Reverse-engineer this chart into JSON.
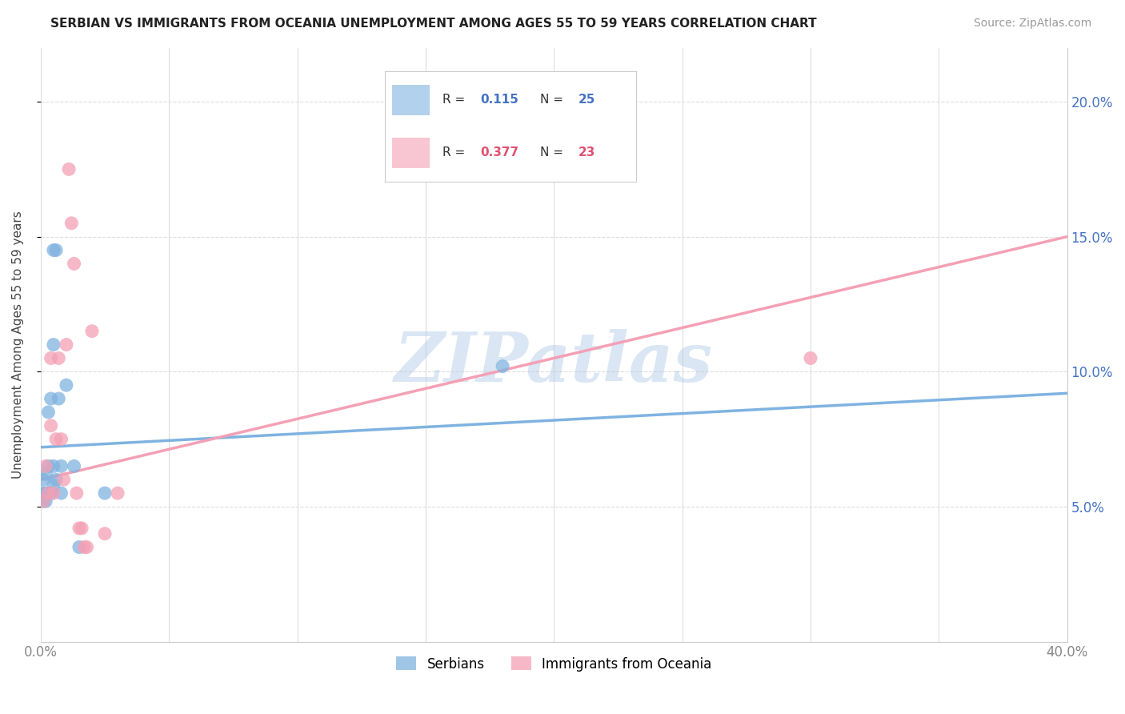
{
  "title": "SERBIAN VS IMMIGRANTS FROM OCEANIA UNEMPLOYMENT AMONG AGES 55 TO 59 YEARS CORRELATION CHART",
  "source": "Source: ZipAtlas.com",
  "ylabel": "Unemployment Among Ages 55 to 59 years",
  "xlim": [
    0,
    0.4
  ],
  "ylim": [
    0,
    0.22
  ],
  "xtick_vals": [
    0.0,
    0.05,
    0.1,
    0.15,
    0.2,
    0.25,
    0.3,
    0.35,
    0.4
  ],
  "xticklabels": [
    "0.0%",
    "",
    "",
    "",
    "",
    "",
    "",
    "",
    "40.0%"
  ],
  "ytick_positions": [
    0.05,
    0.1,
    0.15,
    0.2
  ],
  "ytick_labels": [
    "5.0%",
    "10.0%",
    "15.0%",
    "20.0%"
  ],
  "serbian_color": "#7fb3e0",
  "oceania_color": "#f4a0b5",
  "serbian_R": 0.115,
  "serbian_N": 25,
  "oceania_R": 0.377,
  "oceania_N": 23,
  "serbian_x": [
    0.001,
    0.001,
    0.001,
    0.002,
    0.002,
    0.002,
    0.003,
    0.003,
    0.003,
    0.004,
    0.004,
    0.005,
    0.005,
    0.005,
    0.005,
    0.006,
    0.006,
    0.007,
    0.008,
    0.008,
    0.01,
    0.013,
    0.015,
    0.025,
    0.18
  ],
  "serbian_y": [
    0.052,
    0.055,
    0.06,
    0.052,
    0.055,
    0.062,
    0.055,
    0.065,
    0.085,
    0.055,
    0.09,
    0.058,
    0.065,
    0.11,
    0.145,
    0.145,
    0.06,
    0.09,
    0.055,
    0.065,
    0.095,
    0.065,
    0.035,
    0.055,
    0.102
  ],
  "oceania_x": [
    0.001,
    0.002,
    0.003,
    0.004,
    0.004,
    0.005,
    0.006,
    0.007,
    0.008,
    0.009,
    0.01,
    0.011,
    0.012,
    0.013,
    0.014,
    0.015,
    0.016,
    0.017,
    0.018,
    0.02,
    0.025,
    0.03,
    0.3
  ],
  "oceania_y": [
    0.052,
    0.065,
    0.055,
    0.08,
    0.105,
    0.055,
    0.075,
    0.105,
    0.075,
    0.06,
    0.11,
    0.175,
    0.155,
    0.14,
    0.055,
    0.042,
    0.042,
    0.035,
    0.035,
    0.115,
    0.04,
    0.055,
    0.105
  ],
  "serbian_line_x": [
    0.0,
    0.4
  ],
  "serbian_line_y": [
    0.072,
    0.092
  ],
  "oceania_line_x": [
    0.0,
    0.4
  ],
  "oceania_line_y": [
    0.06,
    0.15
  ],
  "watermark": "ZIPatlas",
  "background_color": "#ffffff",
  "grid_color": "#dddddd"
}
